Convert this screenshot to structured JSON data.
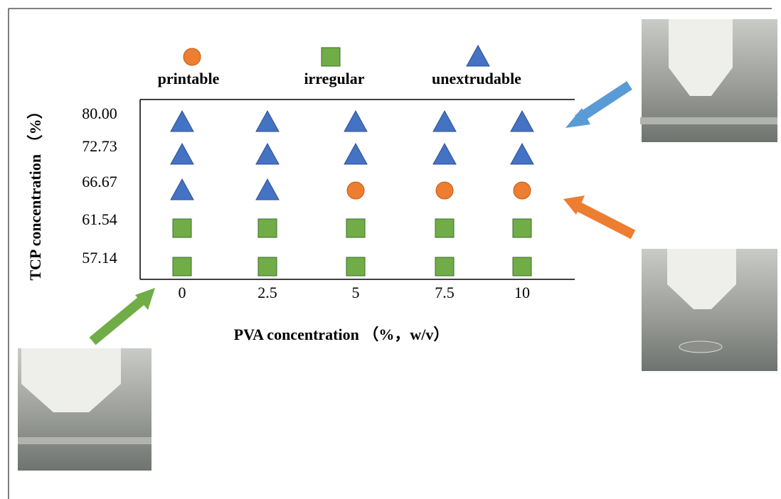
{
  "chart_data": {
    "type": "category-matrix",
    "x_label": "PVA concentration （%，w/v）",
    "y_label": "TCP concentration （%）",
    "x_categories": [
      "0",
      "2.5",
      "5",
      "7.5",
      "10"
    ],
    "y_categories": [
      "80.00",
      "72.73",
      "66.67",
      "61.54",
      "57.14"
    ],
    "legend": [
      {
        "name": "printable",
        "shape": "circle",
        "color": "#ed7d31"
      },
      {
        "name": "irregular",
        "shape": "square",
        "color": "#70ad47"
      },
      {
        "name": "unextrudable",
        "shape": "triangle",
        "color": "#4472c4"
      }
    ],
    "states": [
      [
        "unextrudable",
        "unextrudable",
        "unextrudable",
        "unextrudable",
        "unextrudable"
      ],
      [
        "unextrudable",
        "unextrudable",
        "unextrudable",
        "unextrudable",
        "unextrudable"
      ],
      [
        "unextrudable",
        "unextrudable",
        "printable",
        "printable",
        "printable"
      ],
      [
        "irregular",
        "irregular",
        "irregular",
        "irregular",
        "irregular"
      ],
      [
        "irregular",
        "irregular",
        "irregular",
        "irregular",
        "irregular"
      ]
    ]
  }
}
